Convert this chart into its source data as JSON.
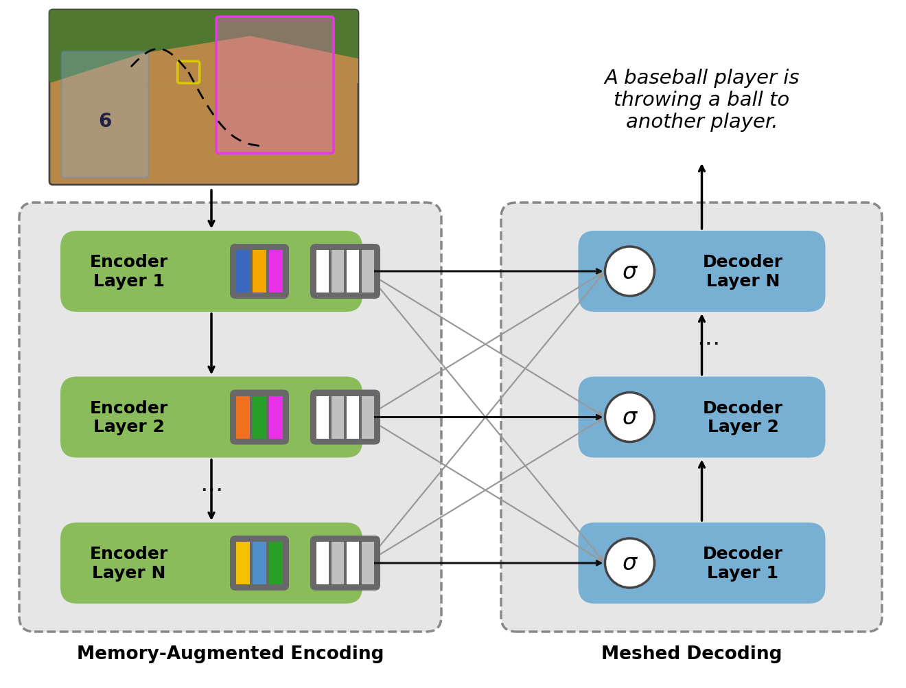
{
  "caption_text": "A baseball player is\nthrowing a ball to\nanother player.",
  "encoder_labels": [
    "Encoder\nLayer 1",
    "Encoder\nLayer 2",
    "Encoder\nLayer N"
  ],
  "decoder_labels": [
    "Decoder\nLayer 1",
    "Decoder\nLayer 2",
    "Decoder\nLayer N"
  ],
  "encoder_box_color": "#8abc5c",
  "decoder_box_color": "#78b0d4",
  "section_bg": "#e6e6e6",
  "color_bars_1": [
    "#3a6abf",
    "#f5a800",
    "#e830e8"
  ],
  "color_bars_2": [
    "#f07020",
    "#28a028",
    "#e830e8"
  ],
  "color_bars_N": [
    "#f5c000",
    "#5090cc",
    "#28a028"
  ],
  "bar_bg_color": "#686868",
  "dark_arrow": "#111111",
  "gray_arrow": "#999999",
  "section_label_enc": "Memory-Augmented Encoding",
  "section_label_dec": "Meshed Decoding",
  "bg_color": "#ffffff",
  "player1_box_color": "#5b8fd5",
  "player2_box_color": "#e838e8",
  "ball_box_color": "#d8c800",
  "img_bg_brown": "#b88848",
  "img_bg_green": "#507830",
  "img_bg_red": "#c04848"
}
